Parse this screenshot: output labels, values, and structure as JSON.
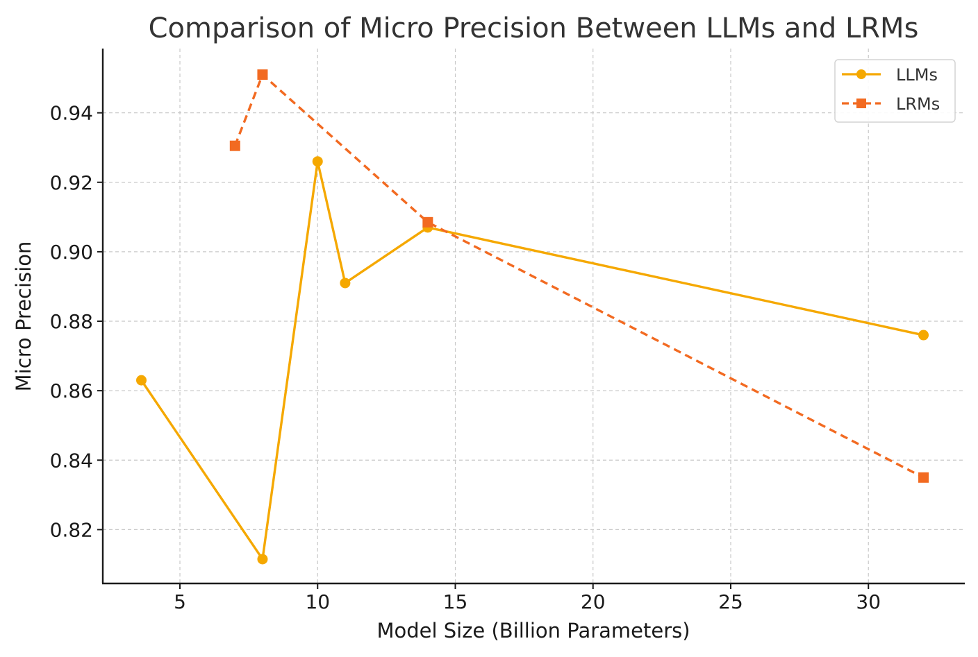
{
  "chart_data": {
    "type": "line",
    "title": "Comparison of Micro Precision Between LLMs and LRMs",
    "xlabel": "Model Size (Billion Parameters)",
    "ylabel": "Micro Precision",
    "xlim": [
      2.2,
      33.5
    ],
    "ylim": [
      0.8045,
      0.9585
    ],
    "xticks": [
      5,
      10,
      15,
      20,
      25,
      30
    ],
    "xtick_labels": [
      "5",
      "10",
      "15",
      "20",
      "25",
      "30"
    ],
    "yticks": [
      0.82,
      0.84,
      0.86,
      0.88,
      0.9,
      0.92,
      0.94
    ],
    "ytick_labels": [
      "0.82",
      "0.84",
      "0.86",
      "0.88",
      "0.90",
      "0.92",
      "0.94"
    ],
    "grid": true,
    "legend_position": "top-right",
    "series": [
      {
        "name": "LLMs",
        "color": "#f5a800",
        "marker": "circle",
        "line_style": "solid",
        "x": [
          3.6,
          8,
          10,
          11,
          14,
          32
        ],
        "y": [
          0.863,
          0.8115,
          0.926,
          0.891,
          0.907,
          0.876
        ]
      },
      {
        "name": "LRMs",
        "color": "#f26a21",
        "marker": "square",
        "line_style": "dashed",
        "x": [
          7,
          8,
          14,
          32
        ],
        "y": [
          0.9305,
          0.951,
          0.9085,
          0.835
        ]
      }
    ]
  }
}
